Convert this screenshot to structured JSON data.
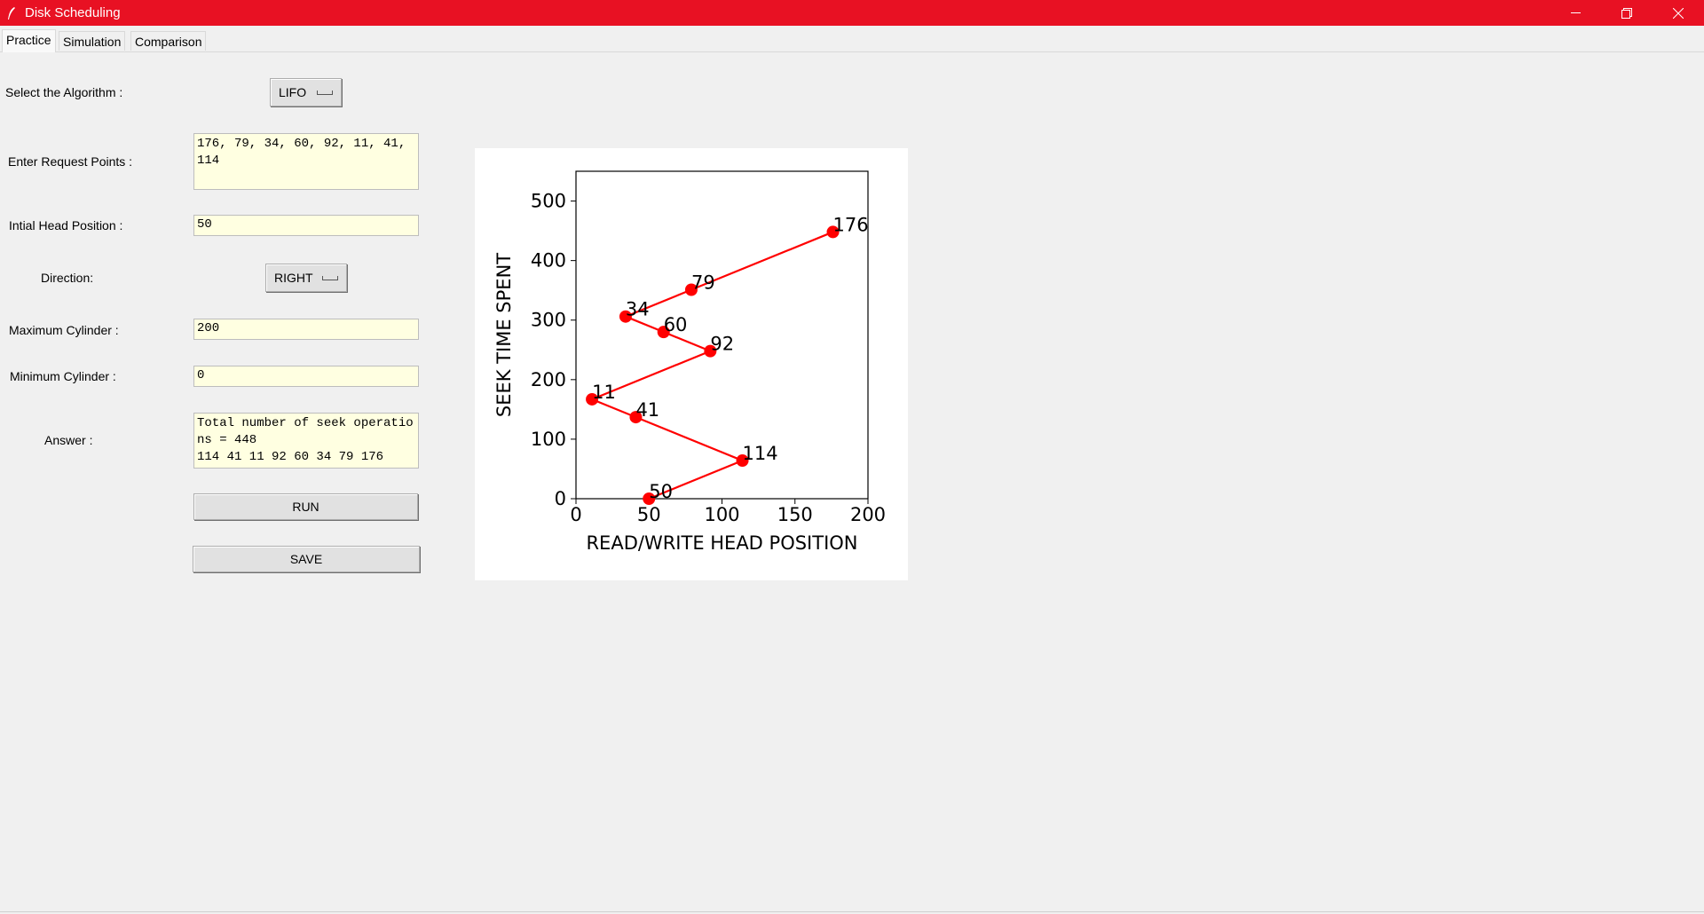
{
  "window": {
    "title": "Disk Scheduling",
    "accent_color": "#e81123",
    "icons": [
      "feather-icon",
      "minimize-icon",
      "restore-icon",
      "close-icon"
    ]
  },
  "tabs": [
    {
      "label": "Practice",
      "active": true
    },
    {
      "label": "Simulation",
      "active": false
    },
    {
      "label": "Comparison",
      "active": false
    }
  ],
  "form": {
    "algorithm_label": "Select the Algorithm :",
    "algorithm_value": "LIFO",
    "requests_label": "Enter Request Points :",
    "requests_value": "176, 79, 34, 60, 92, 11, 41, 114",
    "head_label": "Intial Head Position :",
    "head_value": "50",
    "direction_label": "Direction:",
    "direction_value": "RIGHT",
    "max_label": "Maximum Cylinder :",
    "max_value": "200",
    "min_label": "Minimum Cylinder :",
    "min_value": "0",
    "answer_label": "Answer :",
    "answer_value": "Total number of seek operations = 448\n114 41 11 92 60 34 79 176",
    "run_label": "RUN",
    "save_label": "SAVE"
  },
  "chart_data": {
    "type": "line",
    "xlabel": "READ/WRITE HEAD POSITION",
    "ylabel": "SEEK TIME SPENT",
    "xlim": [
      0,
      200
    ],
    "ylim": [
      0,
      550
    ],
    "xticks": [
      0,
      50,
      100,
      150,
      200
    ],
    "yticks": [
      0,
      100,
      200,
      300,
      400,
      500
    ],
    "color": "#ff0000",
    "grid": false,
    "points": [
      {
        "x": 50,
        "y": 0,
        "label": "50"
      },
      {
        "x": 114,
        "y": 64,
        "label": "114"
      },
      {
        "x": 41,
        "y": 137,
        "label": "41"
      },
      {
        "x": 11,
        "y": 167,
        "label": "11"
      },
      {
        "x": 92,
        "y": 248,
        "label": "92"
      },
      {
        "x": 60,
        "y": 280,
        "label": "60"
      },
      {
        "x": 34,
        "y": 306,
        "label": "34"
      },
      {
        "x": 79,
        "y": 351,
        "label": "79"
      },
      {
        "x": 176,
        "y": 448,
        "label": "176"
      }
    ]
  }
}
